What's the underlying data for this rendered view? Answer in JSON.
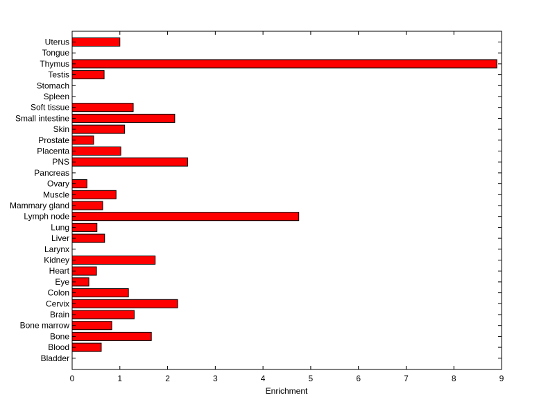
{
  "chart_data": {
    "type": "bar",
    "orientation": "horizontal",
    "title": "",
    "xlabel": "Enrichment",
    "ylabel": "",
    "xlim": [
      0,
      9
    ],
    "xticks": [
      0,
      1,
      2,
      3,
      4,
      5,
      6,
      7,
      8,
      9
    ],
    "grid": false,
    "bar_color": "#ff0000",
    "bar_edge_color": "#000000",
    "categories": [
      "Uterus",
      "Tongue",
      "Thymus",
      "Testis",
      "Stomach",
      "Spleen",
      "Soft tissue",
      "Small intestine",
      "Skin",
      "Prostate",
      "Placenta",
      "PNS",
      "Pancreas",
      "Ovary",
      "Muscle",
      "Mammary gland",
      "Lymph node",
      "Lung",
      "Liver",
      "Larynx",
      "Kidney",
      "Heart",
      "Eye",
      "Colon",
      "Cervix",
      "Brain",
      "Bone marrow",
      "Bone",
      "Blood",
      "Bladder"
    ],
    "values": [
      1.0,
      0,
      8.9,
      0.67,
      0,
      0,
      1.28,
      2.15,
      1.1,
      0.45,
      1.02,
      2.42,
      0,
      0.31,
      0.92,
      0.64,
      4.75,
      0.52,
      0.68,
      0,
      1.74,
      0.51,
      0.35,
      1.18,
      2.21,
      1.3,
      0.83,
      1.66,
      0.61,
      0
    ]
  }
}
